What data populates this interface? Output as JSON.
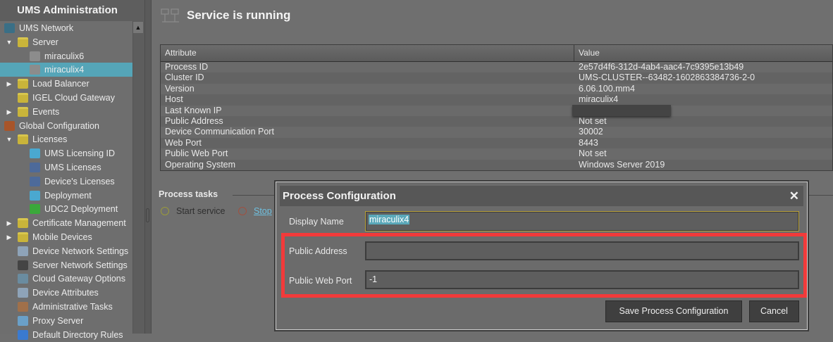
{
  "sidebar": {
    "title": "UMS Administration",
    "items": [
      {
        "label": "UMS Network",
        "icon": "ums-network-icon",
        "level": 0,
        "expander": ""
      },
      {
        "label": "Server",
        "icon": "folder-open-icon",
        "level": 1,
        "expander": "▼"
      },
      {
        "label": "miraculix6",
        "icon": "server-icon",
        "level": 2,
        "expander": ""
      },
      {
        "label": "miraculix4",
        "icon": "server-icon",
        "level": 2,
        "expander": "",
        "selected": true
      },
      {
        "label": "Load Balancer",
        "icon": "folder-icon",
        "level": 1,
        "expander": "▶"
      },
      {
        "label": "IGEL Cloud Gateway",
        "icon": "folder-icon",
        "level": 1,
        "expander": ""
      },
      {
        "label": "Events",
        "icon": "folder-icon",
        "level": 1,
        "expander": "▶"
      },
      {
        "label": "Global Configuration",
        "icon": "global-config-icon",
        "level": 0,
        "expander": ""
      },
      {
        "label": "Licenses",
        "icon": "folder-open-icon",
        "level": 1,
        "expander": "▼"
      },
      {
        "label": "UMS Licensing ID",
        "icon": "licensing-id-icon",
        "level": 2,
        "expander": ""
      },
      {
        "label": "UMS Licenses",
        "icon": "license-icon",
        "level": 2,
        "expander": ""
      },
      {
        "label": "Device's Licenses",
        "icon": "device-license-icon",
        "level": 2,
        "expander": ""
      },
      {
        "label": "Deployment",
        "icon": "deployment-icon",
        "level": 2,
        "expander": ""
      },
      {
        "label": "UDC2 Deployment",
        "icon": "udc2-deployment-icon",
        "level": 2,
        "expander": ""
      },
      {
        "label": "Certificate Management",
        "icon": "folder-icon",
        "level": 1,
        "expander": "▶"
      },
      {
        "label": "Mobile Devices",
        "icon": "folder-icon",
        "level": 1,
        "expander": "▶"
      },
      {
        "label": "Device Network Settings",
        "icon": "device-network-icon",
        "level": 1,
        "expander": ""
      },
      {
        "label": "Server Network Settings",
        "icon": "server-network-icon",
        "level": 1,
        "expander": ""
      },
      {
        "label": "Cloud Gateway Options",
        "icon": "cloud-gateway-icon",
        "level": 1,
        "expander": ""
      },
      {
        "label": "Device Attributes",
        "icon": "device-attributes-icon",
        "level": 1,
        "expander": ""
      },
      {
        "label": "Administrative Tasks",
        "icon": "clock-icon",
        "level": 1,
        "expander": ""
      },
      {
        "label": "Proxy Server",
        "icon": "proxy-icon",
        "level": 1,
        "expander": ""
      },
      {
        "label": "Default Directory Rules",
        "icon": "rules-icon",
        "level": 1,
        "expander": ""
      }
    ]
  },
  "main": {
    "status_title": "Service is running",
    "table": {
      "headers": [
        "Attribute",
        "Value"
      ],
      "rows": [
        [
          "Process ID",
          "2e57d4f6-312d-4ab4-aac4-7c9395e13b49"
        ],
        [
          "Cluster ID",
          "UMS-CLUSTER--63482-1602863384736-2-0"
        ],
        [
          "Version",
          "6.06.100.mm4"
        ],
        [
          "Host",
          "miraculix4"
        ],
        [
          "Last Known IP",
          ""
        ],
        [
          "Public Address",
          "Not set"
        ],
        [
          "Device Communication Port",
          "30002"
        ],
        [
          "Web Port",
          "8443"
        ],
        [
          "Public Web Port",
          "Not set"
        ],
        [
          "Operating System",
          "Windows Server 2019"
        ]
      ]
    },
    "tasks": {
      "label": "Process tasks",
      "start": "Start service",
      "stop": "Stop"
    }
  },
  "dialog": {
    "title": "Process Configuration",
    "close": "✕",
    "display_name_label": "Display Name",
    "display_name_value": "miraculix4",
    "public_address_label": "Public Address",
    "public_address_value": "",
    "public_web_port_label": "Public Web Port",
    "public_web_port_value": "-1",
    "save_label": "Save Process Configuration",
    "cancel_label": "Cancel"
  },
  "colors": {
    "selection": "#55a5b8",
    "highlight": "#f23a3a",
    "focus": "#b8a13a"
  }
}
